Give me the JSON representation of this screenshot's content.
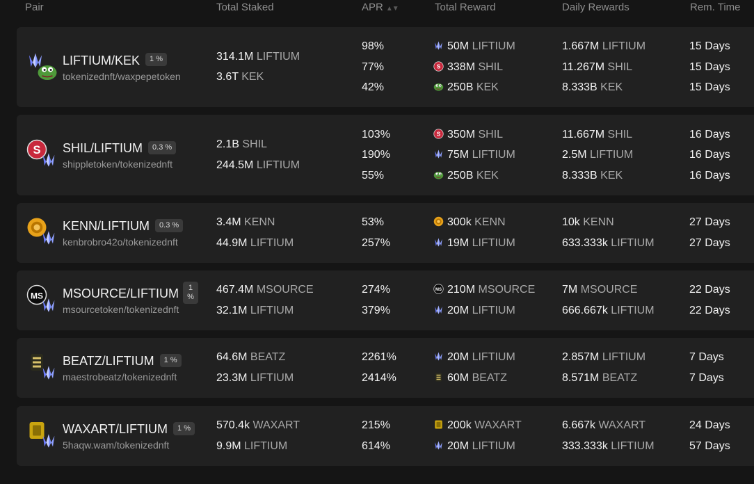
{
  "header": {
    "pair": "Pair",
    "staked": "Total Staked",
    "apr": "APR",
    "reward": "Total Reward",
    "daily": "Daily Rewards",
    "remaining": "Rem. Time"
  },
  "rows": [
    {
      "name": "LIFTIUM/KEK",
      "fee": "1 %",
      "contracts": "tokenizednft/waxpepetoken",
      "staked": [
        {
          "amount": "314.1M",
          "token": "LIFTIUM"
        },
        {
          "amount": "3.6T",
          "token": "KEK"
        }
      ],
      "apr": [
        "98%",
        "77%",
        "42%"
      ],
      "reward": [
        {
          "amount": "50M",
          "token": "LIFTIUM"
        },
        {
          "amount": "338M",
          "token": "SHIL"
        },
        {
          "amount": "250B",
          "token": "KEK"
        }
      ],
      "daily": [
        {
          "amount": "1.667M",
          "token": "LIFTIUM"
        },
        {
          "amount": "11.267M",
          "token": "SHIL"
        },
        {
          "amount": "8.333B",
          "token": "KEK"
        }
      ],
      "remaining": [
        "15 Days",
        "15 Days",
        "15 Days"
      ]
    },
    {
      "name": "SHIL/LIFTIUM",
      "fee": "0.3 %",
      "contracts": "shippletoken/tokenizednft",
      "staked": [
        {
          "amount": "2.1B",
          "token": "SHIL"
        },
        {
          "amount": "244.5M",
          "token": "LIFTIUM"
        }
      ],
      "apr": [
        "103%",
        "190%",
        "55%"
      ],
      "reward": [
        {
          "amount": "350M",
          "token": "SHIL"
        },
        {
          "amount": "75M",
          "token": "LIFTIUM"
        },
        {
          "amount": "250B",
          "token": "KEK"
        }
      ],
      "daily": [
        {
          "amount": "11.667M",
          "token": "SHIL"
        },
        {
          "amount": "2.5M",
          "token": "LIFTIUM"
        },
        {
          "amount": "8.333B",
          "token": "KEK"
        }
      ],
      "remaining": [
        "16 Days",
        "16 Days",
        "16 Days"
      ]
    },
    {
      "name": "KENN/LIFTIUM",
      "fee": "0.3 %",
      "contracts": "kenbrobro42o/tokenizednft",
      "staked": [
        {
          "amount": "3.4M",
          "token": "KENN"
        },
        {
          "amount": "44.9M",
          "token": "LIFTIUM"
        }
      ],
      "apr": [
        "53%",
        "257%"
      ],
      "reward": [
        {
          "amount": "300k",
          "token": "KENN"
        },
        {
          "amount": "19M",
          "token": "LIFTIUM"
        }
      ],
      "daily": [
        {
          "amount": "10k",
          "token": "KENN"
        },
        {
          "amount": "633.333k",
          "token": "LIFTIUM"
        }
      ],
      "remaining": [
        "27 Days",
        "27 Days"
      ]
    },
    {
      "name": "MSOURCE/LIFTIUM",
      "fee": "1 %",
      "contracts": "msourcetoken/tokenizednft",
      "staked": [
        {
          "amount": "467.4M",
          "token": "MSOURCE"
        },
        {
          "amount": "32.1M",
          "token": "LIFTIUM"
        }
      ],
      "apr": [
        "274%",
        "379%"
      ],
      "reward": [
        {
          "amount": "210M",
          "token": "MSOURCE"
        },
        {
          "amount": "20M",
          "token": "LIFTIUM"
        }
      ],
      "daily": [
        {
          "amount": "7M",
          "token": "MSOURCE"
        },
        {
          "amount": "666.667k",
          "token": "LIFTIUM"
        }
      ],
      "remaining": [
        "22 Days",
        "22 Days"
      ]
    },
    {
      "name": "BEATZ/LIFTIUM",
      "fee": "1 %",
      "contracts": "maestrobeatz/tokenizednft",
      "staked": [
        {
          "amount": "64.6M",
          "token": "BEATZ"
        },
        {
          "amount": "23.3M",
          "token": "LIFTIUM"
        }
      ],
      "apr": [
        "2261%",
        "2414%"
      ],
      "reward": [
        {
          "amount": "20M",
          "token": "LIFTIUM"
        },
        {
          "amount": "60M",
          "token": "BEATZ"
        }
      ],
      "daily": [
        {
          "amount": "2.857M",
          "token": "LIFTIUM"
        },
        {
          "amount": "8.571M",
          "token": "BEATZ"
        }
      ],
      "remaining": [
        "7 Days",
        "7 Days"
      ]
    },
    {
      "name": "WAXART/LIFTIUM",
      "fee": "1 %",
      "contracts": "5haqw.wam/tokenizednft",
      "staked": [
        {
          "amount": "570.4k",
          "token": "WAXART"
        },
        {
          "amount": "9.9M",
          "token": "LIFTIUM"
        }
      ],
      "apr": [
        "215%",
        "614%"
      ],
      "reward": [
        {
          "amount": "200k",
          "token": "WAXART"
        },
        {
          "amount": "20M",
          "token": "LIFTIUM"
        }
      ],
      "daily": [
        {
          "amount": "6.667k",
          "token": "WAXART"
        },
        {
          "amount": "333.333k",
          "token": "LIFTIUM"
        }
      ],
      "remaining": [
        "24 Days",
        "57 Days"
      ]
    }
  ],
  "colors": {
    "background": "#151515",
    "row": "#212121",
    "badge": "#3a3a3a",
    "liftium": "#7f93ff",
    "shil": "#c8283c",
    "kek": "#4f9a3a",
    "kenn": "#e8a21a",
    "waxart": "#c9a40f"
  }
}
